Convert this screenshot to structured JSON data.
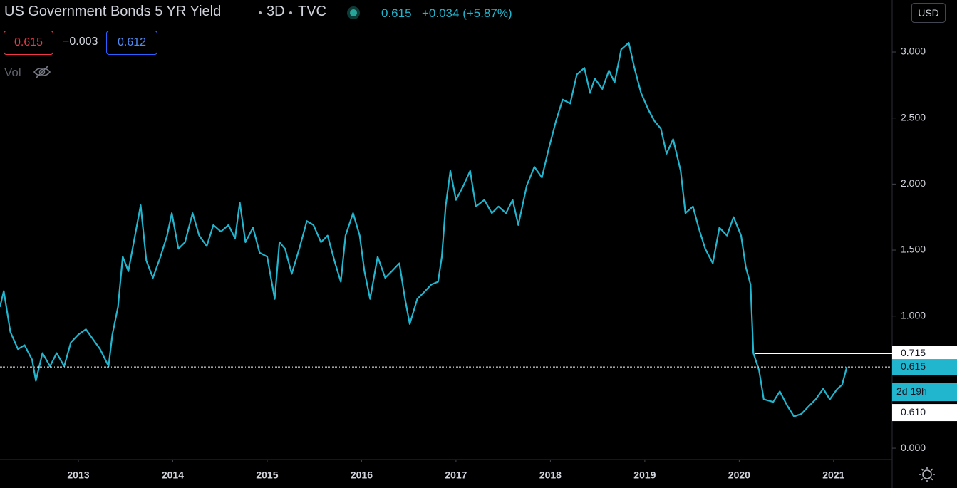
{
  "header": {
    "title": "US Government Bonds 5 YR Yield",
    "interval": "3D",
    "exchange": "TVC",
    "last": "0.615",
    "change": "+0.034 (+5.87%)",
    "open": "0.615",
    "diff": "−0.003",
    "close": "0.612",
    "volume_label": "Vol",
    "currency": "USD"
  },
  "chart_data": {
    "type": "line",
    "x": [
      2012.17,
      2012.21,
      2012.28,
      2012.36,
      2012.43,
      2012.51,
      2012.55,
      2012.62,
      2012.7,
      2012.77,
      2012.85,
      2012.92,
      2013.0,
      2013.08,
      2013.15,
      2013.23,
      2013.32,
      2013.36,
      2013.42,
      2013.47,
      2013.53,
      2013.6,
      2013.66,
      2013.72,
      2013.79,
      2013.87,
      2013.94,
      2013.99,
      2014.06,
      2014.13,
      2014.21,
      2014.28,
      2014.36,
      2014.43,
      2014.51,
      2014.59,
      2014.66,
      2014.71,
      2014.77,
      2014.85,
      2014.92,
      2015.0,
      2015.08,
      2015.13,
      2015.19,
      2015.26,
      2015.34,
      2015.42,
      2015.49,
      2015.57,
      2015.64,
      2015.72,
      2015.78,
      2015.83,
      2015.91,
      2015.98,
      2016.03,
      2016.09,
      2016.17,
      2016.25,
      2016.32,
      2016.4,
      2016.46,
      2016.51,
      2016.59,
      2016.66,
      2016.74,
      2016.81,
      2016.85,
      2016.89,
      2016.94,
      2017.0,
      2017.08,
      2017.15,
      2017.21,
      2017.3,
      2017.38,
      2017.45,
      2017.53,
      2017.6,
      2017.66,
      2017.75,
      2017.83,
      2017.91,
      2017.98,
      2018.06,
      2018.13,
      2018.21,
      2018.28,
      2018.36,
      2018.42,
      2018.47,
      2018.55,
      2018.62,
      2018.68,
      2018.75,
      2018.83,
      2018.89,
      2018.96,
      2019.04,
      2019.1,
      2019.17,
      2019.23,
      2019.3,
      2019.38,
      2019.43,
      2019.51,
      2019.57,
      2019.64,
      2019.72,
      2019.79,
      2019.87,
      2019.94,
      2020.02,
      2020.07,
      2020.12,
      2020.15,
      2020.21,
      2020.26,
      2020.36,
      2020.43,
      2020.51,
      2020.58,
      2020.66,
      2020.74,
      2020.81,
      2020.89,
      2020.96,
      2021.04,
      2021.09,
      2021.14
    ],
    "series": [
      {
        "name": "US05Y",
        "color": "#22b5ce",
        "values": [
          1.07,
          1.19,
          0.88,
          0.75,
          0.78,
          0.67,
          0.51,
          0.72,
          0.62,
          0.72,
          0.62,
          0.8,
          0.86,
          0.9,
          0.83,
          0.75,
          0.62,
          0.86,
          1.07,
          1.45,
          1.34,
          1.61,
          1.84,
          1.42,
          1.29,
          1.45,
          1.61,
          1.78,
          1.51,
          1.56,
          1.78,
          1.61,
          1.53,
          1.69,
          1.64,
          1.69,
          1.59,
          1.86,
          1.56,
          1.67,
          1.48,
          1.45,
          1.13,
          1.56,
          1.51,
          1.32,
          1.51,
          1.72,
          1.69,
          1.56,
          1.61,
          1.4,
          1.26,
          1.61,
          1.78,
          1.61,
          1.34,
          1.13,
          1.45,
          1.29,
          1.34,
          1.4,
          1.13,
          0.94,
          1.13,
          1.18,
          1.24,
          1.26,
          1.45,
          1.83,
          2.1,
          1.88,
          1.99,
          2.1,
          1.83,
          1.88,
          1.78,
          1.83,
          1.78,
          1.88,
          1.69,
          1.99,
          2.13,
          2.05,
          2.26,
          2.48,
          2.64,
          2.61,
          2.83,
          2.88,
          2.69,
          2.8,
          2.72,
          2.86,
          2.77,
          3.02,
          3.07,
          2.88,
          2.69,
          2.56,
          2.48,
          2.42,
          2.23,
          2.34,
          2.1,
          1.78,
          1.83,
          1.67,
          1.51,
          1.4,
          1.67,
          1.61,
          1.75,
          1.61,
          1.37,
          1.24,
          0.72,
          0.59,
          0.37,
          0.35,
          0.43,
          0.32,
          0.24,
          0.26,
          0.32,
          0.37,
          0.45,
          0.37,
          0.45,
          0.48,
          0.615
        ]
      }
    ],
    "xlim": [
      2012.17,
      2021.62
    ],
    "xticks": [
      2013,
      2014,
      2015,
      2016,
      2017,
      2018,
      2019,
      2020,
      2021
    ],
    "ylim": [
      -0.086,
      3.394
    ],
    "yticks": [
      {
        "value": 0,
        "label": "0.000"
      },
      {
        "value": 1,
        "label": "1.000"
      },
      {
        "value": 1.5,
        "label": "1.500"
      },
      {
        "value": 2,
        "label": "2.000"
      },
      {
        "value": 2.5,
        "label": "2.500"
      },
      {
        "value": 3,
        "label": "3.000"
      }
    ],
    "high_line": {
      "value": 0.715,
      "label": "0.715",
      "start_x": 2020.17
    },
    "last_price": {
      "value": 0.615,
      "label": "0.615"
    },
    "countdown": "2d 19h",
    "prev_label": "0.610",
    "grid": false
  }
}
